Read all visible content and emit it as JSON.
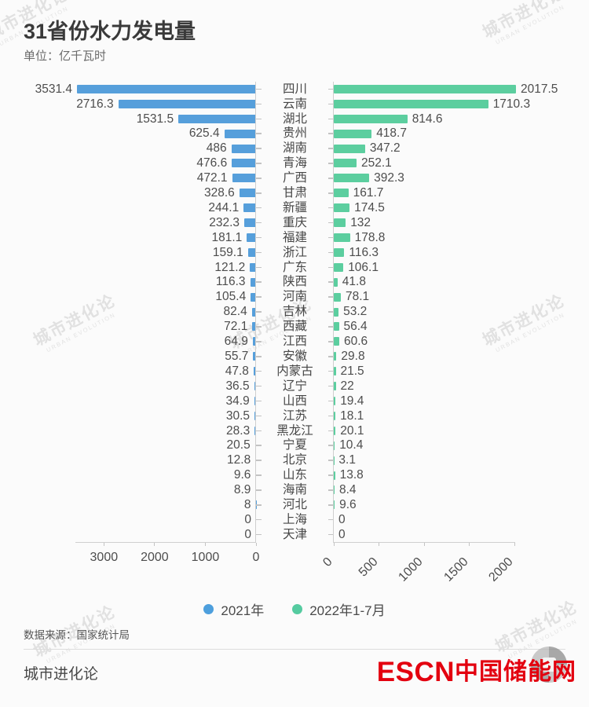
{
  "title": "31省份水力发电量",
  "subtitle": "单位：亿千瓦时",
  "watermark": {
    "cn": "城市进化论",
    "en": "URBAN EVOLUTION"
  },
  "colors": {
    "bar2021": "#569fdb",
    "bar2022": "#5cce9f",
    "logo_red": "#e3000f"
  },
  "legend": [
    {
      "label": "2021年",
      "color": "#4d9fdd"
    },
    {
      "label": "2022年1-7月",
      "color": "#55cba0"
    }
  ],
  "chart_data": {
    "type": "bar",
    "orientation": "horizontal-tornado",
    "title": "31省份水力发电量",
    "unit": "亿千瓦时",
    "categories": [
      "四川",
      "云南",
      "湖北",
      "贵州",
      "湖南",
      "青海",
      "广西",
      "甘肃",
      "新疆",
      "重庆",
      "福建",
      "浙江",
      "广东",
      "陕西",
      "河南",
      "吉林",
      "西藏",
      "江西",
      "安徽",
      "内蒙古",
      "辽宁",
      "山西",
      "江苏",
      "黑龙江",
      "宁夏",
      "北京",
      "山东",
      "海南",
      "河北",
      "上海",
      "天津"
    ],
    "series": [
      {
        "name": "2021年",
        "values": [
          3531.4,
          2716.3,
          1531.5,
          625.4,
          486,
          476.6,
          472.1,
          328.6,
          244.1,
          232.3,
          181.1,
          159.1,
          121.2,
          116.3,
          105.4,
          82.4,
          72.1,
          64.9,
          55.7,
          47.8,
          36.5,
          34.9,
          30.5,
          28.3,
          20.5,
          12.8,
          9.6,
          8.9,
          8,
          0,
          0
        ]
      },
      {
        "name": "2022年1-7月",
        "values": [
          2017.5,
          1710.3,
          814.6,
          418.7,
          347.2,
          252.1,
          392.3,
          161.7,
          174.5,
          132,
          178.8,
          116.3,
          106.1,
          41.8,
          78.1,
          53.2,
          56.4,
          60.6,
          29.8,
          21.5,
          22,
          19.4,
          18.1,
          20.1,
          10.4,
          3.1,
          13.8,
          8.4,
          9.6,
          0,
          0
        ]
      }
    ],
    "left_axis_ticks": [
      "3000",
      "2000",
      "1000",
      "0"
    ],
    "right_axis_ticks": [
      "0",
      "500",
      "1000",
      "1500",
      "2000"
    ],
    "left_xlim": [
      0,
      3550
    ],
    "right_xlim": [
      0,
      2030
    ],
    "legend_position": "bottom",
    "grid": false
  },
  "footer": {
    "source": "数据来源：国家统计局",
    "brand": "城市进化论",
    "logo_escn": "ESCN",
    "logo_cn": "中国储能网"
  }
}
